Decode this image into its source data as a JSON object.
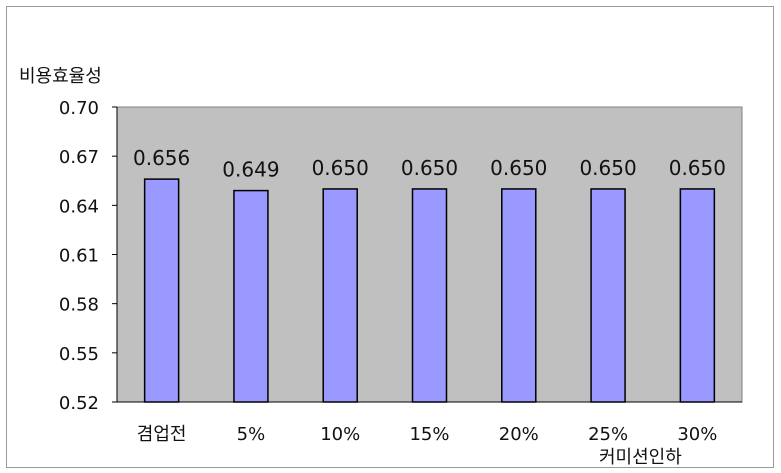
{
  "chart_data": {
    "type": "bar",
    "ylabel": "비용효율성",
    "xlabel": "커미션인하",
    "categories": [
      "겸업전",
      "5%",
      "10%",
      "15%",
      "20%",
      "25%",
      "30%"
    ],
    "values": [
      0.656,
      0.649,
      0.65,
      0.65,
      0.65,
      0.65,
      0.65
    ],
    "data_labels": [
      "0.656",
      "0.649",
      "0.650",
      "0.650",
      "0.650",
      "0.650",
      "0.650"
    ],
    "ylim": [
      0.52,
      0.7
    ],
    "yticks": [
      0.52,
      0.55,
      0.58,
      0.61,
      0.64,
      0.67,
      0.7
    ],
    "ytick_labels": [
      "0.52",
      "0.55",
      "0.58",
      "0.61",
      "0.64",
      "0.67",
      "0.70"
    ],
    "grid": false,
    "legend": "none",
    "colors": {
      "plot_background": "#c0c0c0",
      "bar_fill": "#9999ff",
      "bar_stroke": "#000000"
    }
  }
}
